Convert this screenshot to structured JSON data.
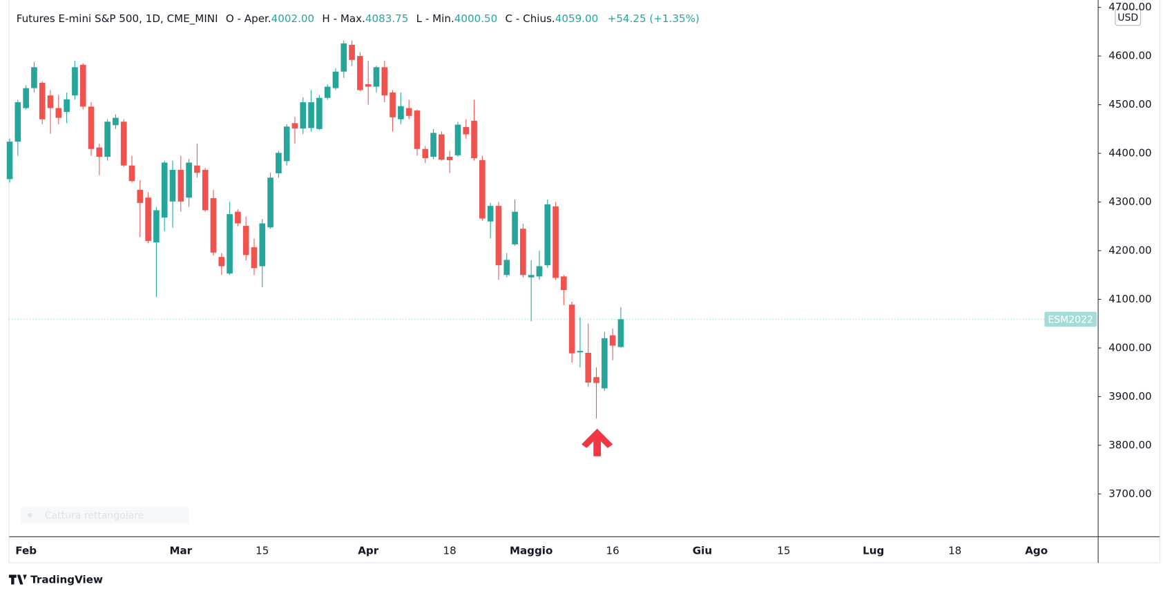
{
  "chart_data": {
    "type": "candlestick",
    "title": "Futures E-mini S&P 500, 1D, CME_MINI",
    "legend": {
      "open_label": "O - Aper.",
      "open": "4002.00",
      "high_label": "H - Max.",
      "high": "4083.75",
      "low_label": "L - Min.",
      "low": "4000.50",
      "close_label": "C - Chius.",
      "close": "4059.00",
      "change": "+54.25 (+1.35%)"
    },
    "currency": "USD",
    "symbol_label": "ESM2022",
    "watermark": "Cattura rettangolare",
    "up_color": "#26a69a",
    "down_color": "#ef5350",
    "grid": false,
    "ylim": [
      3612,
      4715
    ],
    "yticks": [
      {
        "value": 3700,
        "label": "3700.00"
      },
      {
        "value": 3800,
        "label": "3800.00"
      },
      {
        "value": 3900,
        "label": "3900.00"
      },
      {
        "value": 4000,
        "label": "4000.00"
      },
      {
        "value": 4100,
        "label": "4100.00"
      },
      {
        "value": 4200,
        "label": "4200.00"
      },
      {
        "value": 4300,
        "label": "4300.00"
      },
      {
        "value": 4400,
        "label": "4400.00"
      },
      {
        "value": 4500,
        "label": "4500.00"
      },
      {
        "value": 4600,
        "label": "4600.00"
      },
      {
        "value": 4700,
        "label": "4700.00"
      }
    ],
    "categories": [
      null,
      null,
      "Feb",
      null,
      null,
      null,
      null,
      null,
      null,
      null,
      null,
      null,
      null,
      null,
      null,
      null,
      null,
      null,
      null,
      null,
      null,
      "Mar",
      null,
      null,
      null,
      null,
      null,
      null,
      null,
      null,
      null,
      "15",
      null,
      null,
      null,
      null,
      null,
      null,
      null,
      null,
      null,
      null,
      null,
      null,
      "Apr",
      null,
      null,
      null,
      null,
      null,
      null,
      null,
      null,
      null,
      "18",
      null,
      null,
      null,
      null,
      null,
      null,
      null,
      null,
      null,
      "Maggio",
      null,
      null,
      null,
      null,
      null,
      null,
      null,
      null,
      null,
      "16",
      null,
      null,
      null,
      null,
      null,
      null,
      null,
      null,
      null,
      null,
      "Giu",
      null,
      null,
      null,
      null,
      null,
      null,
      null,
      null,
      null,
      "15",
      null,
      null,
      null,
      null,
      null,
      null,
      null,
      null,
      null,
      null,
      "Lug",
      null,
      null,
      null,
      null,
      null,
      null,
      null,
      null,
      null,
      "18",
      null,
      null,
      null,
      null,
      null,
      null,
      null,
      null,
      null,
      "Ago",
      null,
      null,
      null,
      null,
      null,
      null,
      null
    ],
    "open": [
      4347,
      4424,
      4493,
      4534,
      4545,
      4519,
      4493,
      4485,
      4519,
      4582,
      4496,
      4412,
      4393,
      4458,
      4465,
      4375,
      4325,
      4309,
      4217,
      4268,
      4301,
      4366,
      4309,
      4375,
      4366,
      4308,
      4187,
      4153,
      4280,
      4251,
      4207,
      4168,
      4248,
      4359,
      4384,
      4462,
      4451,
      4452,
      4450,
      4514,
      4534,
      4568,
      4623,
      4600,
      4542,
      4537,
      4577,
      4525,
      4470,
      4493,
      4488,
      4409,
      4393,
      4439,
      4393,
      4396,
      4454,
      4467,
      4386,
      4260,
      4292,
      4150,
      4213,
      4245,
      4145,
      4147,
      4170,
      4291,
      4147,
      4089,
      3991,
      3990,
      3940,
      3917,
      4026,
      4002,
      null,
      null,
      null,
      null,
      null,
      null,
      null,
      null,
      null,
      null,
      null,
      null,
      null,
      null,
      null,
      null,
      null,
      null,
      null,
      null,
      null,
      null,
      null,
      null,
      null,
      null,
      null,
      null,
      null,
      null,
      null,
      null,
      null,
      null,
      null,
      null,
      null,
      null,
      null,
      null,
      null,
      null,
      null,
      null,
      null,
      null,
      null,
      null,
      null,
      null,
      null,
      null,
      null,
      null,
      null,
      null,
      null,
      null
    ],
    "high": [
      4430,
      4510,
      4540,
      4588,
      4548,
      4530,
      4520,
      4525,
      4590,
      4585,
      4505,
      4420,
      4470,
      4480,
      4470,
      4395,
      4345,
      4320,
      4290,
      4385,
      4385,
      4395,
      4388,
      4420,
      4370,
      4325,
      4195,
      4300,
      4285,
      4270,
      4225,
      4265,
      4360,
      4405,
      4460,
      4475,
      4515,
      4530,
      4520,
      4542,
      4575,
      4632,
      4632,
      4608,
      4590,
      4580,
      4590,
      4530,
      4525,
      4510,
      4490,
      4415,
      4450,
      4445,
      4405,
      4465,
      4470,
      4510,
      4395,
      4298,
      4300,
      4195,
      4305,
      4255,
      4180,
      4200,
      4305,
      4300,
      4150,
      4095,
      4063,
      4050,
      3960,
      4033,
      4040,
      4083.75,
      null,
      null,
      null,
      null,
      null,
      null,
      null,
      null,
      null,
      null,
      null,
      null,
      null,
      null,
      null,
      null,
      null,
      null,
      null,
      null,
      null,
      null,
      null,
      null,
      null,
      null,
      null,
      null,
      null,
      null,
      null,
      null,
      null,
      null,
      null,
      null,
      null,
      null,
      null,
      null,
      null,
      null,
      null,
      null,
      null,
      null,
      null,
      null,
      null,
      null,
      null,
      null,
      null,
      null,
      null,
      null,
      null,
      null
    ],
    "low": [
      4340,
      4395,
      4490,
      4525,
      4460,
      4440,
      4460,
      4462,
      4510,
      4490,
      4395,
      4355,
      4385,
      4450,
      4372,
      4340,
      4228,
      4215,
      4105,
      4240,
      4247,
      4280,
      4290,
      4350,
      4280,
      4190,
      4150,
      4150,
      4250,
      4180,
      4150,
      4125,
      4245,
      4350,
      4375,
      4420,
      4440,
      4445,
      4448,
      4510,
      4530,
      4555,
      4580,
      4528,
      4500,
      4525,
      4505,
      4445,
      4460,
      4470,
      4395,
      4380,
      4388,
      4385,
      4360,
      4393,
      4430,
      4385,
      4262,
      4225,
      4140,
      4145,
      4210,
      4145,
      4055,
      4140,
      4165,
      4140,
      4088,
      3970,
      3960,
      3920,
      3855,
      3912,
      3975,
      4000.5,
      null,
      null,
      null,
      null,
      null,
      null,
      null,
      null,
      null,
      null,
      null,
      null,
      null,
      null,
      null,
      null,
      null,
      null,
      null,
      null,
      null,
      null,
      null,
      null,
      null,
      null,
      null,
      null,
      null,
      null,
      null,
      null,
      null,
      null,
      null,
      null,
      null,
      null,
      null,
      null,
      null,
      null,
      null,
      null,
      null,
      null,
      null,
      null,
      null,
      null,
      null,
      null,
      null,
      null,
      null,
      null,
      null,
      null
    ],
    "close": [
      4424,
      4505,
      4534,
      4577,
      4470,
      4493,
      4473,
      4511,
      4577,
      4496,
      4409,
      4393,
      4465,
      4473,
      4375,
      4343,
      4298,
      4220,
      4283,
      4381,
      4366,
      4301,
      4381,
      4360,
      4283,
      4196,
      4168,
      4275,
      4256,
      4191,
      4164,
      4256,
      4350,
      4401,
      4455,
      4451,
      4505,
      4505,
      4514,
      4537,
      4568,
      4626,
      4592,
      4530,
      4537,
      4577,
      4519,
      4474,
      4497,
      4477,
      4409,
      4390,
      4442,
      4387,
      4386,
      4459,
      4439,
      4390,
      4266,
      4292,
      4170,
      4181,
      4280,
      4150,
      4150,
      4168,
      4295,
      4144,
      4119,
      3989,
      3994,
      3929,
      3928,
      4020,
      4004.75,
      4059,
      null,
      null,
      null,
      null,
      null,
      null,
      null,
      null,
      null,
      null,
      null,
      null,
      null,
      null,
      null,
      null,
      null,
      null,
      null,
      null,
      null,
      null,
      null,
      null,
      null,
      null,
      null,
      null,
      null,
      null,
      null,
      null,
      null,
      null,
      null,
      null,
      null,
      null,
      null,
      null,
      null,
      null,
      null,
      null,
      null,
      null,
      null,
      null,
      null,
      null,
      null,
      null,
      null,
      null,
      null,
      null,
      null,
      null
    ]
  },
  "brand": "TradingView"
}
